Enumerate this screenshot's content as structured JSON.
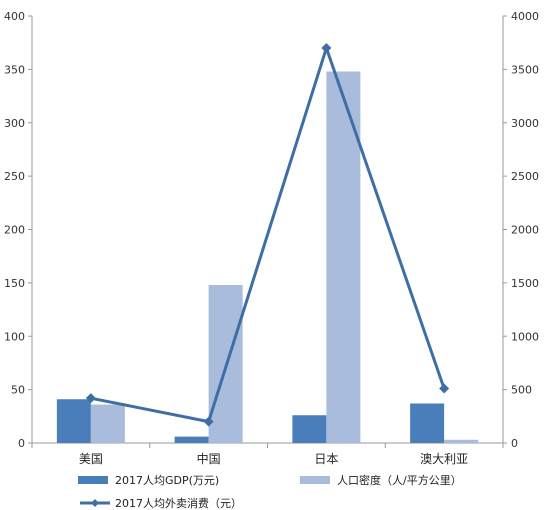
{
  "chart_data": {
    "type": "bar",
    "categories": [
      "美国",
      "中国",
      "日本",
      "澳大利亚"
    ],
    "series": [
      {
        "name": "2017人均GDP(万元)",
        "kind": "bar",
        "axis": "left",
        "color": "#4a7ebb",
        "values": [
          41,
          6,
          26,
          37
        ]
      },
      {
        "name": "人口密度（人/平方公里）",
        "kind": "bar",
        "axis": "left",
        "color": "#a9bcdc",
        "values": [
          36,
          148,
          348,
          3
        ]
      },
      {
        "name": "2017人均外卖消费（元）",
        "kind": "line",
        "axis": "right",
        "color": "#3f6ea5",
        "marker": "diamond",
        "values": [
          420,
          200,
          3700,
          510
        ]
      }
    ],
    "left_axis": {
      "ylim": [
        0,
        400
      ],
      "ticks": [
        "0",
        "50",
        "100",
        "150",
        "200",
        "250",
        "300",
        "350",
        "400"
      ]
    },
    "right_axis": {
      "ylim": [
        0,
        4000
      ],
      "ticks": [
        "0",
        "500",
        "1000",
        "1500",
        "2000",
        "2500",
        "3000",
        "3500",
        "4000"
      ]
    },
    "grid": false,
    "legend_position": "bottom"
  }
}
